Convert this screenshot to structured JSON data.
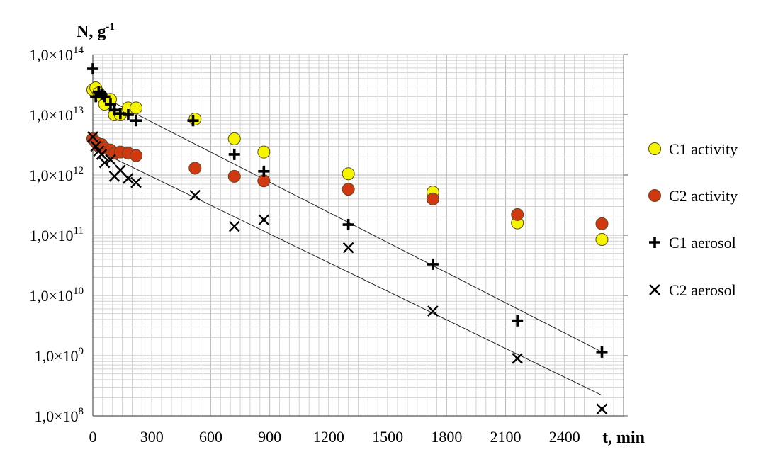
{
  "chart_data": {
    "type": "scatter",
    "ylabel": "N, g",
    "ylabel_exp": "-1",
    "xlabel": "t, min",
    "y_scale": "log",
    "xlim": [
      0,
      2700
    ],
    "ylim": [
      100000000.0,
      100000000000000.0
    ],
    "grid": true,
    "legend_position": "right",
    "x_ticks": [
      {
        "value": 0,
        "label": "0"
      },
      {
        "value": 300,
        "label": "300"
      },
      {
        "value": 600,
        "label": "600"
      },
      {
        "value": 900,
        "label": "900"
      },
      {
        "value": 1200,
        "label": "1200"
      },
      {
        "value": 1500,
        "label": "1500"
      },
      {
        "value": 1800,
        "label": "1800"
      },
      {
        "value": 2100,
        "label": "2100"
      },
      {
        "value": 2400,
        "label": "2400"
      }
    ],
    "y_ticks": [
      {
        "value": 100000000000000.0,
        "mantissa": "1,0×10",
        "exp": "14"
      },
      {
        "value": 10000000000000.0,
        "mantissa": "1,0×10",
        "exp": "13"
      },
      {
        "value": 1000000000000.0,
        "mantissa": "1,0×10",
        "exp": "12"
      },
      {
        "value": 100000000000.0,
        "mantissa": "1,0×10",
        "exp": "11"
      },
      {
        "value": 10000000000.0,
        "mantissa": "1,0×10",
        "exp": "10"
      },
      {
        "value": 1000000000.0,
        "mantissa": "1,0×10",
        "exp": "9"
      },
      {
        "value": 100000000.0,
        "mantissa": "1,0×10",
        "exp": "8"
      }
    ],
    "series": [
      {
        "name": "C1 activity",
        "marker": "circle",
        "color": "#f5f500",
        "points": [
          [
            0,
            26000000000000.0
          ],
          [
            15,
            28000000000000.0
          ],
          [
            30,
            23000000000000.0
          ],
          [
            45,
            20000000000000.0
          ],
          [
            60,
            15000000000000.0
          ],
          [
            90,
            18000000000000.0
          ],
          [
            110,
            10000000000000.0
          ],
          [
            140,
            10000000000000.0
          ],
          [
            180,
            13000000000000.0
          ],
          [
            220,
            13000000000000.0
          ],
          [
            520,
            8500000000000.0
          ],
          [
            720,
            4000000000000.0
          ],
          [
            870,
            2400000000000.0
          ],
          [
            1300,
            1050000000000.0
          ],
          [
            1730,
            520000000000.0
          ],
          [
            2160,
            160000000000.0
          ],
          [
            2590,
            85000000000.0
          ]
        ]
      },
      {
        "name": "C2 activity",
        "marker": "circle",
        "color": "#d2380f",
        "points": [
          [
            0,
            4000000000000.0
          ],
          [
            15,
            3500000000000.0
          ],
          [
            30,
            3000000000000.0
          ],
          [
            45,
            3200000000000.0
          ],
          [
            60,
            2800000000000.0
          ],
          [
            90,
            2600000000000.0
          ],
          [
            110,
            2300000000000.0
          ],
          [
            140,
            2400000000000.0
          ],
          [
            180,
            2300000000000.0
          ],
          [
            220,
            2100000000000.0
          ],
          [
            520,
            1300000000000.0
          ],
          [
            720,
            950000000000.0
          ],
          [
            870,
            800000000000.0
          ],
          [
            1300,
            580000000000.0
          ],
          [
            1730,
            400000000000.0
          ],
          [
            2160,
            220000000000.0
          ],
          [
            2590,
            155000000000.0
          ]
        ]
      },
      {
        "name": "C1 aerosol",
        "marker": "plus",
        "color": "#000000",
        "points": [
          [
            0,
            58000000000000.0
          ],
          [
            15,
            20000000000000.0
          ],
          [
            30,
            24000000000000.0
          ],
          [
            45,
            22000000000000.0
          ],
          [
            60,
            20000000000000.0
          ],
          [
            90,
            15000000000000.0
          ],
          [
            110,
            12000000000000.0
          ],
          [
            140,
            10500000000000.0
          ],
          [
            180,
            10000000000000.0
          ],
          [
            220,
            8000000000000.0
          ],
          [
            510,
            8000000000000.0
          ],
          [
            720,
            2200000000000.0
          ],
          [
            870,
            1150000000000.0
          ],
          [
            1300,
            150000000000.0
          ],
          [
            1730,
            33000000000.0
          ],
          [
            2160,
            3800000000.0
          ],
          [
            2590,
            1150000000.0
          ]
        ]
      },
      {
        "name": "C2 aerosol",
        "marker": "cross",
        "color": "#000000",
        "points": [
          [
            0,
            4300000000000.0
          ],
          [
            15,
            3000000000000.0
          ],
          [
            30,
            2500000000000.0
          ],
          [
            45,
            2200000000000.0
          ],
          [
            60,
            1600000000000.0
          ],
          [
            90,
            1800000000000.0
          ],
          [
            110,
            950000000000.0
          ],
          [
            140,
            1200000000000.0
          ],
          [
            180,
            880000000000.0
          ],
          [
            220,
            750000000000.0
          ],
          [
            520,
            460000000000.0
          ],
          [
            720,
            140000000000.0
          ],
          [
            870,
            180000000000.0
          ],
          [
            1300,
            62000000000.0
          ],
          [
            1730,
            5500000000.0
          ],
          [
            2160,
            900000000.0
          ],
          [
            2590,
            130000000.0
          ]
        ]
      }
    ],
    "fit_lines": [
      {
        "from": [
          0,
          24000000000000.0
        ],
        "to": [
          2590,
          1150000000.0
        ]
      },
      {
        "from": [
          0,
          2800000000000.0
        ],
        "to": [
          2590,
          220000000.0
        ]
      }
    ]
  }
}
